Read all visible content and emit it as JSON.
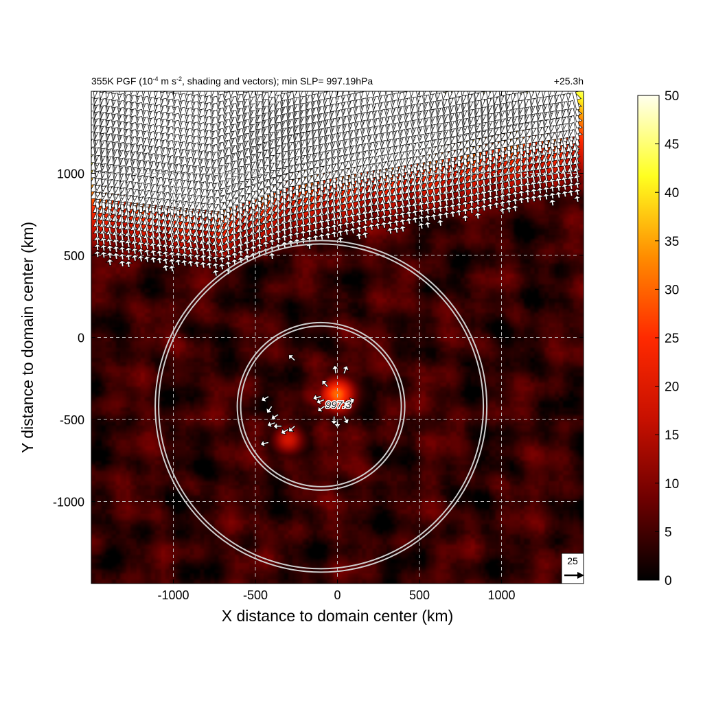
{
  "chart_data": {
    "type": "heatmap",
    "title_left": "355K PGF (10",
    "title_sup1": "-4",
    "title_mid": " m s",
    "title_sup2": "-2",
    "title_rest": ", shading and vectors); min SLP= 997.19hPa",
    "title_right": "+25.3h",
    "xlabel": "X distance to domain center (km)",
    "ylabel": "Y distance to domain center (km)",
    "xlim": [
      -1500,
      1500
    ],
    "ylim": [
      -1500,
      1500
    ],
    "xticks": [
      -1000,
      -500,
      0,
      500,
      1000
    ],
    "yticks": [
      -1000,
      -500,
      0,
      500,
      1000
    ],
    "xtick_labels": [
      "-1000",
      "-500",
      "0",
      "500",
      "1000"
    ],
    "ytick_labels": [
      "-1000",
      "-500",
      "0",
      "500",
      "1000"
    ],
    "grid": true,
    "grid_style": "dashed",
    "colorbar": {
      "min": 0,
      "max": 50,
      "ticks": [
        0,
        5,
        10,
        15,
        20,
        25,
        30,
        35,
        40,
        45,
        50
      ],
      "tick_labels": [
        "0",
        "5",
        "10",
        "15",
        "20",
        "25",
        "30",
        "35",
        "40",
        "45",
        "50"
      ],
      "colormap": [
        "#000000",
        "#6e0000",
        "#c81000",
        "#ff2a00",
        "#ff8c00",
        "#ffff20",
        "#ffffee"
      ],
      "placement": "right"
    },
    "center_marker": {
      "x": -100,
      "y": -420,
      "label": "997.3"
    },
    "rings_km": [
      500,
      1000
    ],
    "reference_vector": {
      "value_label": "25",
      "placement": "bottom-right"
    },
    "field": {
      "background_level": 4,
      "northern_band": {
        "boundary_y_at_x": [
          [
            -1500,
            560
          ],
          [
            -700,
            480
          ],
          [
            -300,
            620
          ],
          [
            200,
            720
          ],
          [
            700,
            800
          ],
          [
            1100,
            880
          ],
          [
            1500,
            940
          ]
        ],
        "peak_level": 48
      },
      "core_peak": {
        "x": 0,
        "y": -350,
        "level": 30
      },
      "secondary_peak": {
        "x": -300,
        "y": -620,
        "level": 18
      }
    }
  }
}
